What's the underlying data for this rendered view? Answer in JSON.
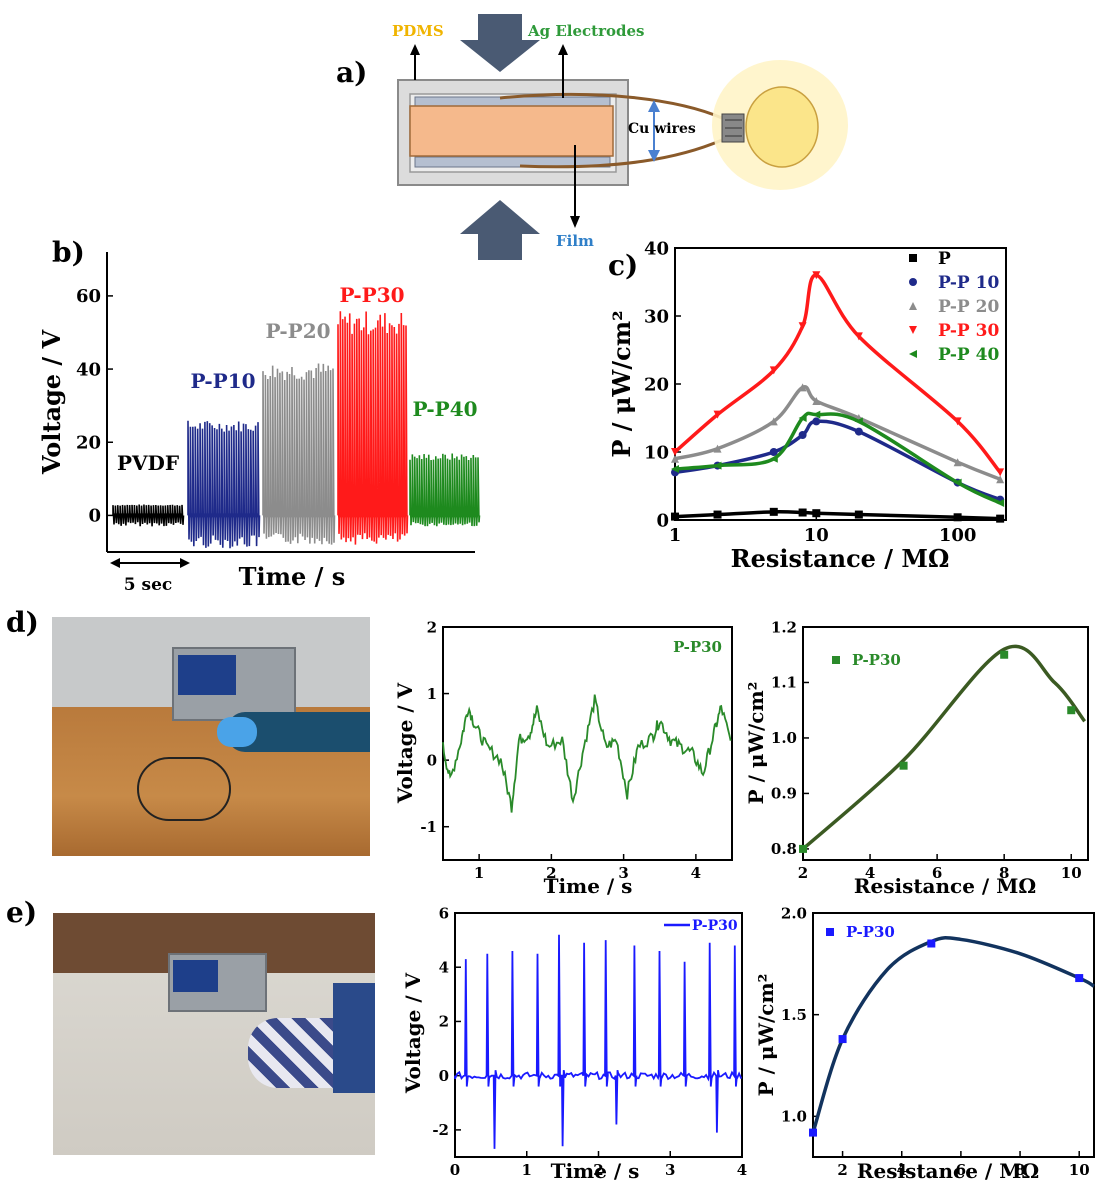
{
  "panel_labels": {
    "a": "a)",
    "b": "b)",
    "c": "c)",
    "d": "d)",
    "e": "e)"
  },
  "schematic": {
    "pdms_label": "PDMS",
    "ag_label": "Ag Electrodes",
    "cu_label": "Cu wires",
    "film_label": "Film",
    "colors": {
      "pdms": "#f0b400",
      "ag": "#2f9a3a",
      "film": "#2f7fc8",
      "arrow": "#4a5a73",
      "film_fill": "#f5b98c",
      "bulb": "#fbe58a"
    }
  },
  "chart_data": [
    {
      "id": "b",
      "type": "line",
      "title": "",
      "xlabel": "Time / s",
      "ylabel": "Voltage / V",
      "ylim": [
        -10,
        72
      ],
      "yticks": [
        0,
        20,
        40,
        60
      ],
      "scale_bar_label": "5 sec",
      "series": [
        {
          "name": "PVDF",
          "color": "#000000",
          "peak_pos": 3,
          "peak_neg": -3
        },
        {
          "name": "P-P10",
          "color": "#1f2a8a",
          "peak_pos": 26,
          "peak_neg": -9
        },
        {
          "name": "P-P20",
          "color": "#8c8c8c",
          "peak_pos": 42,
          "peak_neg": -8
        },
        {
          "name": "P-P30",
          "color": "#ff1a1a",
          "peak_pos": 56,
          "peak_neg": -8
        },
        {
          "name": "P-P40",
          "color": "#1e8a1e",
          "peak_pos": 17,
          "peak_neg": -3
        }
      ]
    },
    {
      "id": "c",
      "type": "scatter",
      "title": "",
      "xlabel": "Resistance / MΩ",
      "ylabel": "P / μW/cm²",
      "x_scale": "log",
      "xlim": [
        1,
        220
      ],
      "xticks": [
        1,
        10,
        100
      ],
      "ylim": [
        0,
        40
      ],
      "yticks": [
        0,
        10,
        20,
        30,
        40
      ],
      "legend_position": "top-right",
      "series": [
        {
          "name": "P",
          "color": "#000000",
          "marker": "square",
          "x": [
            1,
            2,
            5,
            8,
            10,
            20,
            100,
            200
          ],
          "y": [
            0.5,
            0.8,
            1.2,
            1.1,
            1.0,
            0.8,
            0.4,
            0.2
          ]
        },
        {
          "name": "P-P 10",
          "color": "#1f2a8a",
          "marker": "circle",
          "x": [
            1,
            2,
            5,
            8,
            10,
            20,
            100,
            200
          ],
          "y": [
            7,
            8,
            10,
            12.5,
            14.5,
            13,
            5.5,
            3
          ]
        },
        {
          "name": "P-P 20",
          "color": "#8c8c8c",
          "marker": "triangle-up",
          "x": [
            1,
            2,
            5,
            8,
            10,
            20,
            100,
            200
          ],
          "y": [
            9,
            10.5,
            14.5,
            19.5,
            17.5,
            15,
            8.5,
            6
          ]
        },
        {
          "name": "P-P 30",
          "color": "#ff1a1a",
          "marker": "triangle-down",
          "x": [
            1,
            2,
            5,
            8,
            10,
            20,
            100,
            200
          ],
          "y": [
            10,
            15.5,
            22,
            28.5,
            36,
            27,
            14.5,
            7
          ]
        },
        {
          "name": "P-P 40",
          "color": "#1e8a1e",
          "marker": "triangle-left",
          "x": [
            1,
            2,
            5,
            8,
            10,
            20,
            100,
            200
          ],
          "y": [
            7.5,
            8,
            9,
            15,
            15.5,
            14.5,
            5.5,
            2.5
          ]
        }
      ]
    },
    {
      "id": "d-voltage",
      "type": "line",
      "title": "",
      "xlabel": "Time / s",
      "ylabel": "Voltage / V",
      "xlim": [
        0.5,
        4.5
      ],
      "xticks": [
        1,
        2,
        3,
        4
      ],
      "ylim": [
        -1.5,
        2
      ],
      "yticks": [
        -1,
        0,
        1,
        2
      ],
      "series": [
        {
          "name": "P-P30",
          "color": "#2a8a2a",
          "x": [
            0.5,
            0.6,
            0.75,
            0.85,
            0.95,
            1.1,
            1.3,
            1.45,
            1.55,
            1.7,
            1.8,
            1.95,
            2.15,
            2.3,
            2.45,
            2.6,
            2.75,
            2.9,
            3.05,
            3.2,
            3.4,
            3.5,
            3.65,
            3.8,
            3.95,
            4.1,
            4.25,
            4.35,
            4.5
          ],
          "y": [
            0.2,
            -0.3,
            0.3,
            0.8,
            0.5,
            0.2,
            0.0,
            -0.7,
            0.3,
            0.4,
            0.75,
            0.2,
            0.3,
            -0.6,
            0.2,
            0.9,
            0.2,
            0.3,
            -0.5,
            0.2,
            0.35,
            0.6,
            0.3,
            0.2,
            0.1,
            -0.2,
            0.4,
            0.8,
            0.2
          ]
        }
      ]
    },
    {
      "id": "d-power",
      "type": "scatter",
      "title": "",
      "xlabel": "Resistance / MΩ",
      "ylabel": "P / μW/cm²",
      "xlim": [
        2,
        10.5
      ],
      "xticks": [
        2,
        4,
        6,
        8,
        10
      ],
      "ylim": [
        0.78,
        1.2
      ],
      "yticks": [
        0.8,
        0.9,
        1.0,
        1.1,
        1.2
      ],
      "legend_position": "top-left",
      "series": [
        {
          "name": "P-P30",
          "color": "#2a8a2a",
          "marker": "square",
          "x": [
            2,
            5,
            8,
            10
          ],
          "y": [
            0.8,
            0.95,
            1.15,
            1.05
          ]
        }
      ]
    },
    {
      "id": "e-voltage",
      "type": "line",
      "title": "",
      "xlabel": "Time / s",
      "ylabel": "Voltage / V",
      "xlim": [
        0,
        4
      ],
      "xticks": [
        0,
        1,
        2,
        3,
        4
      ],
      "ylim": [
        -3,
        6
      ],
      "yticks": [
        -2,
        0,
        2,
        4,
        6
      ],
      "legend_position": "top-right",
      "series": [
        {
          "name": "P-P30",
          "color": "#1a1aff",
          "spikes_t": [
            0.15,
            0.45,
            0.8,
            1.15,
            1.45,
            1.8,
            2.1,
            2.5,
            2.85,
            3.2,
            3.55,
            3.9
          ],
          "spikes_v": [
            4.3,
            4.5,
            4.6,
            4.5,
            5.2,
            4.9,
            5.0,
            4.8,
            4.6,
            4.2,
            4.9,
            4.8
          ],
          "neg_t": [
            0.55,
            1.5,
            2.25,
            3.65
          ],
          "neg_v": [
            -2.7,
            -2.6,
            -1.8,
            -2.1
          ]
        }
      ]
    },
    {
      "id": "e-power",
      "type": "scatter",
      "title": "",
      "xlabel": "Resistance / MΩ",
      "ylabel": "P / μW/cm²",
      "xlim": [
        1,
        10.5
      ],
      "xticks": [
        2,
        4,
        6,
        8,
        10
      ],
      "ylim": [
        0.8,
        2.0
      ],
      "yticks": [
        1.0,
        1.5,
        2.0
      ],
      "legend_position": "top-left",
      "series": [
        {
          "name": "P-P30",
          "color": "#1a1aff",
          "marker": "square",
          "x": [
            1,
            2,
            5,
            10
          ],
          "y": [
            0.92,
            1.38,
            1.85,
            1.68
          ]
        }
      ]
    }
  ]
}
